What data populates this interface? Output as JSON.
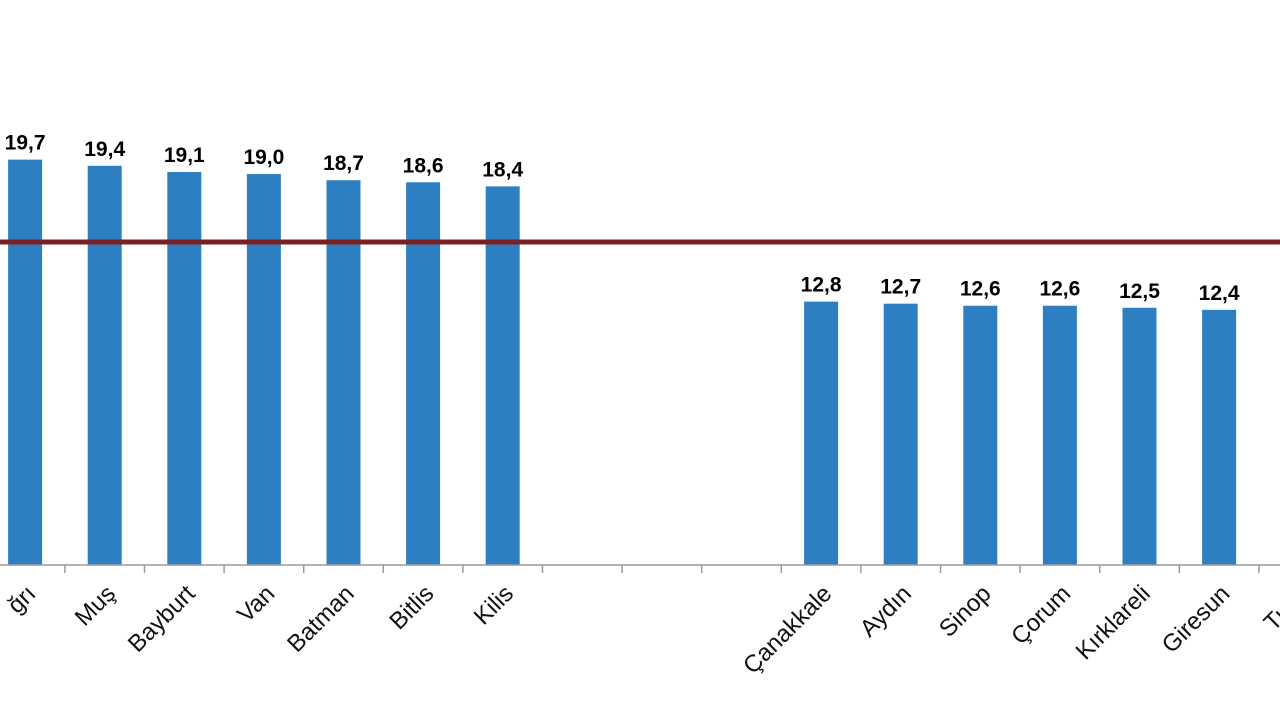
{
  "chart_data": {
    "type": "bar",
    "categories": [
      "Ağrı",
      "Muş",
      "Bayburt",
      "Van",
      "Batman",
      "Bitlis",
      "Kilis",
      "",
      "",
      "",
      "Çanakkale",
      "Aydın",
      "Sinop",
      "Çorum",
      "Kırklareli",
      "Giresun",
      "Tunceli"
    ],
    "values": [
      19.7,
      19.4,
      19.1,
      19.0,
      18.7,
      18.6,
      18.4,
      null,
      null,
      null,
      12.8,
      12.7,
      12.6,
      12.6,
      12.5,
      12.4,
      null
    ],
    "value_labels": [
      "19,7",
      "19,4",
      "19,1",
      "19,0",
      "18,7",
      "18,6",
      "18,4",
      "",
      "",
      "",
      "12,8",
      "12,7",
      "12,6",
      "12,6",
      "12,5",
      "12,4",
      ""
    ],
    "visible_category_text": [
      "ğrı",
      "Muş",
      "Bayburt",
      "Van",
      "Batman",
      "Bitlis",
      "Kilis",
      "",
      "",
      "",
      "Çanakkale",
      "Aydın",
      "Sinop",
      "Çorum",
      "Kırklareli",
      "Giresun",
      "Tunc"
    ],
    "reference_line": {
      "value": 15.7,
      "color": "#7b2022"
    },
    "bar_color": "#2e7fc1",
    "ylim": [
      0,
      26
    ],
    "grid": false,
    "title": "",
    "xlabel": "",
    "ylabel": ""
  }
}
